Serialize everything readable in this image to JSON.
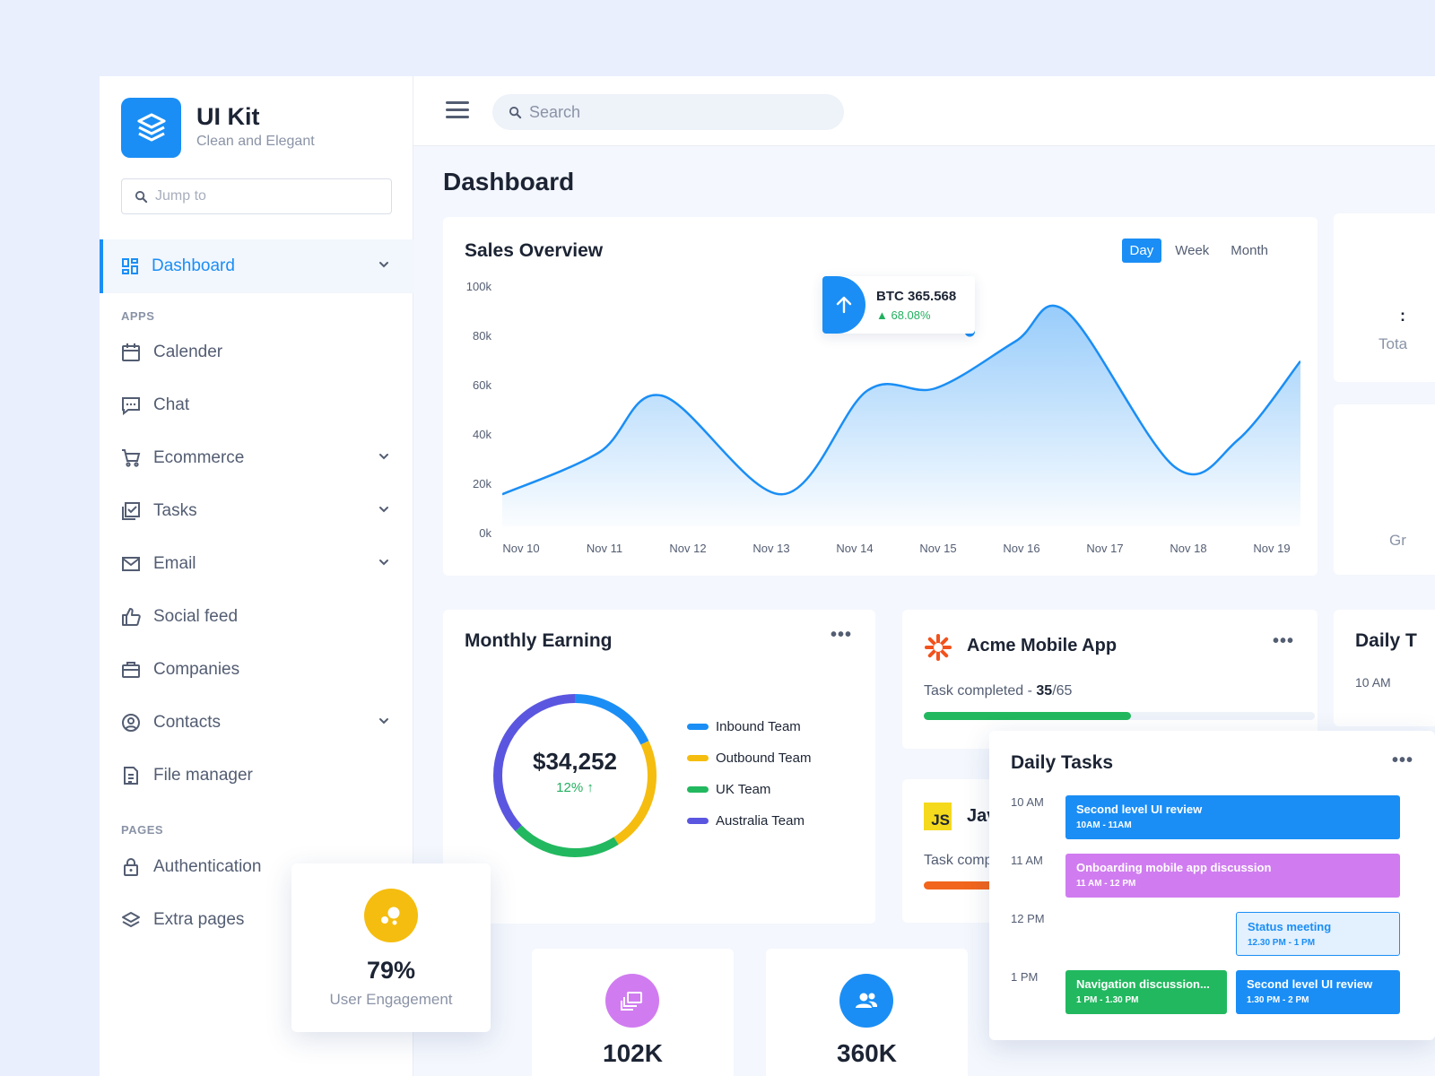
{
  "brand": {
    "title": "UI Kit",
    "subtitle": "Clean and Elegant"
  },
  "sidebar": {
    "jump_placeholder": "Jump to",
    "active": "Dashboard",
    "section_apps": "APPS",
    "section_pages": "PAGES",
    "items": [
      {
        "label": "Calender",
        "icon": "calendar-icon"
      },
      {
        "label": "Chat",
        "icon": "chat-icon"
      },
      {
        "label": "Ecommerce",
        "icon": "cart-icon"
      },
      {
        "label": "Tasks",
        "icon": "tasks-icon"
      },
      {
        "label": "Email",
        "icon": "mail-icon"
      },
      {
        "label": "Social feed",
        "icon": "thumbs-up-icon"
      },
      {
        "label": "Companies",
        "icon": "briefcase-icon"
      },
      {
        "label": "Contacts",
        "icon": "user-circle-icon"
      },
      {
        "label": "File manager",
        "icon": "file-icon"
      }
    ],
    "pages": [
      {
        "label": "Authentication",
        "icon": "lock-icon"
      },
      {
        "label": "Extra pages",
        "icon": "layers-icon"
      }
    ]
  },
  "topbar": {
    "search_placeholder": "Search"
  },
  "page_title": "Dashboard",
  "sales": {
    "title": "Sales Overview",
    "tabs": [
      "Day",
      "Week",
      "Month"
    ],
    "active_tab": "Day",
    "tooltip": {
      "value": "BTC 365.568",
      "change": "68.08%"
    },
    "colors": {
      "line": "#1a8ef5"
    }
  },
  "chart_data": {
    "type": "area",
    "x": [
      "Nov 10",
      "Nov 11",
      "Nov 12",
      "Nov 13",
      "Nov 14",
      "Nov 15",
      "Nov 16",
      "Nov 17",
      "Nov 18",
      "Nov 19"
    ],
    "y_ticks": [
      "100k",
      "80k",
      "60k",
      "40k",
      "20k",
      "0k"
    ],
    "ylim": [
      0,
      100000
    ],
    "points": [
      [
        0.0,
        13000
      ],
      [
        0.85,
        30000
      ],
      [
        1.4,
        53000
      ],
      [
        2.45,
        13000
      ],
      [
        3.2,
        55000
      ],
      [
        3.8,
        56000
      ],
      [
        4.5,
        75000
      ],
      [
        4.95,
        87000
      ],
      [
        5.9,
        24000
      ],
      [
        6.45,
        35000
      ],
      [
        7.0,
        67000
      ]
    ],
    "x_range": [
      0,
      7.0
    ],
    "highlight_point": [
      4.1,
      79000
    ],
    "grid": false
  },
  "earning": {
    "title": "Monthly Earning",
    "total": "$34,252",
    "change": "12%",
    "legend": [
      {
        "label": "Inbound Team",
        "color": "#1a8ef5",
        "share": 0.18
      },
      {
        "label": "Outbound Team",
        "color": "#f5bd0f",
        "share": 0.23
      },
      {
        "label": "UK Team",
        "color": "#22b85f",
        "share": 0.22
      },
      {
        "label": "Australia Team",
        "color": "#5b56e0",
        "share": 0.37
      }
    ]
  },
  "acme": {
    "title": "Acme Mobile App",
    "task_label": "Task completed - ",
    "done": "35",
    "total": "/65",
    "progress": 0.53
  },
  "js": {
    "title": "Javas",
    "badge": "JS",
    "task_label": "Task complet",
    "progress": 0.2
  },
  "daily_right": {
    "title": "Daily T",
    "time": "10 AM"
  },
  "right_cards": {
    "total": "Tota",
    "gr": "Gr",
    "digit": ":"
  },
  "daily_tasks": {
    "title": "Daily Tasks",
    "times": [
      "10 AM",
      "11 AM",
      "12 PM",
      "1 PM"
    ],
    "events": [
      {
        "title": "Second level UI review",
        "time": "10AM - 11AM",
        "color": "#1a8ef5"
      },
      {
        "title": "Onboarding mobile app discussion",
        "time": "11 AM - 12 PM",
        "color": "#d07cf0"
      },
      {
        "title": "Status meeting",
        "time": "12.30 PM - 1 PM",
        "color": "#e3f0fd"
      },
      {
        "title": "Navigation discussion...",
        "time": "1 PM - 1.30 PM",
        "color": "#22b85f"
      },
      {
        "title": "Second level UI review",
        "time": "1.30 PM - 2 PM",
        "color": "#1a8ef5"
      }
    ]
  },
  "stats": [
    {
      "value": "79%",
      "label": "User Engagement",
      "icon": "bubbles-icon",
      "color": "#f5bd0f"
    },
    {
      "value": "102K",
      "label": "",
      "icon": "gallery-icon",
      "color": "#d07cf0"
    },
    {
      "value": "360K",
      "label": "",
      "icon": "users-icon",
      "color": "#1a8ef5"
    }
  ]
}
